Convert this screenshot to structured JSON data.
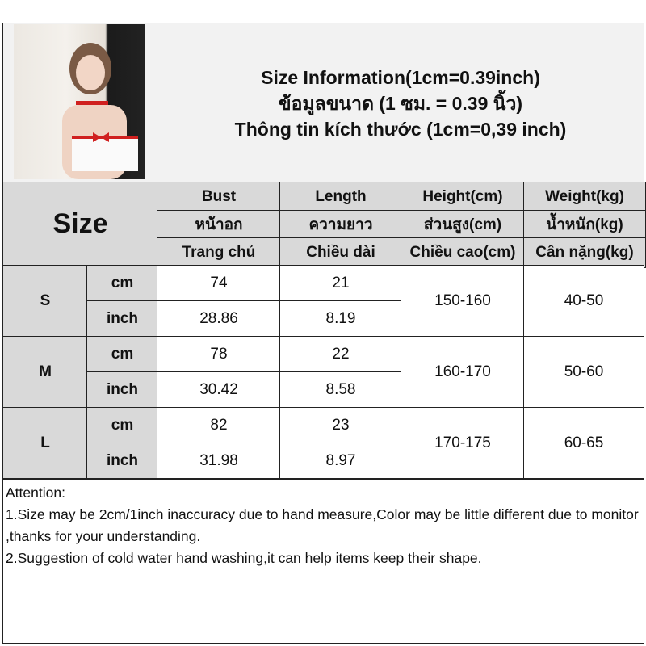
{
  "title": {
    "line1": "Size Information(1cm=0.39inch)",
    "line2": "ข้อมูลขนาด (1 ซม. = 0.39 นิ้ว)",
    "line3": "Thông tin kích thước (1cm=0,39 inch)"
  },
  "header": {
    "size_label": "Size",
    "columns": [
      {
        "en": "Bust",
        "th": "หน้าอก",
        "vi": "Trang chủ"
      },
      {
        "en": "Length",
        "th": "ความยาว",
        "vi": "Chiều dài"
      },
      {
        "en": "Height(cm)",
        "th": "ส่วนสูง(cm)",
        "vi": "Chiều cao(cm)"
      },
      {
        "en": "Weight(kg)",
        "th": "น้ำหนัก(kg)",
        "vi": "Cân nặng(kg)"
      }
    ]
  },
  "rows": [
    {
      "size": "S",
      "cm_label": "cm",
      "inch_label": "inch",
      "bust_cm": "74",
      "length_cm": "21",
      "bust_inch": "28.86",
      "length_inch": "8.19",
      "height": "150-160",
      "weight": "40-50"
    },
    {
      "size": "M",
      "cm_label": "cm",
      "inch_label": "inch",
      "bust_cm": "78",
      "length_cm": "22",
      "bust_inch": "30.42",
      "length_inch": "8.58",
      "height": "160-170",
      "weight": "50-60"
    },
    {
      "size": "L",
      "cm_label": "cm",
      "inch_label": "inch",
      "bust_cm": "82",
      "length_cm": "23",
      "bust_inch": "31.98",
      "length_inch": "8.97",
      "height": "170-175",
      "weight": "60-65"
    }
  ],
  "attention": {
    "heading": "Attention:",
    "note1": "1.Size may be 2cm/1inch inaccuracy due to hand measure,Color may be little different due to monitor ,thanks for your understanding.",
    "note2": "2.Suggestion of cold water hand washing,it can help items keep their shape."
  }
}
